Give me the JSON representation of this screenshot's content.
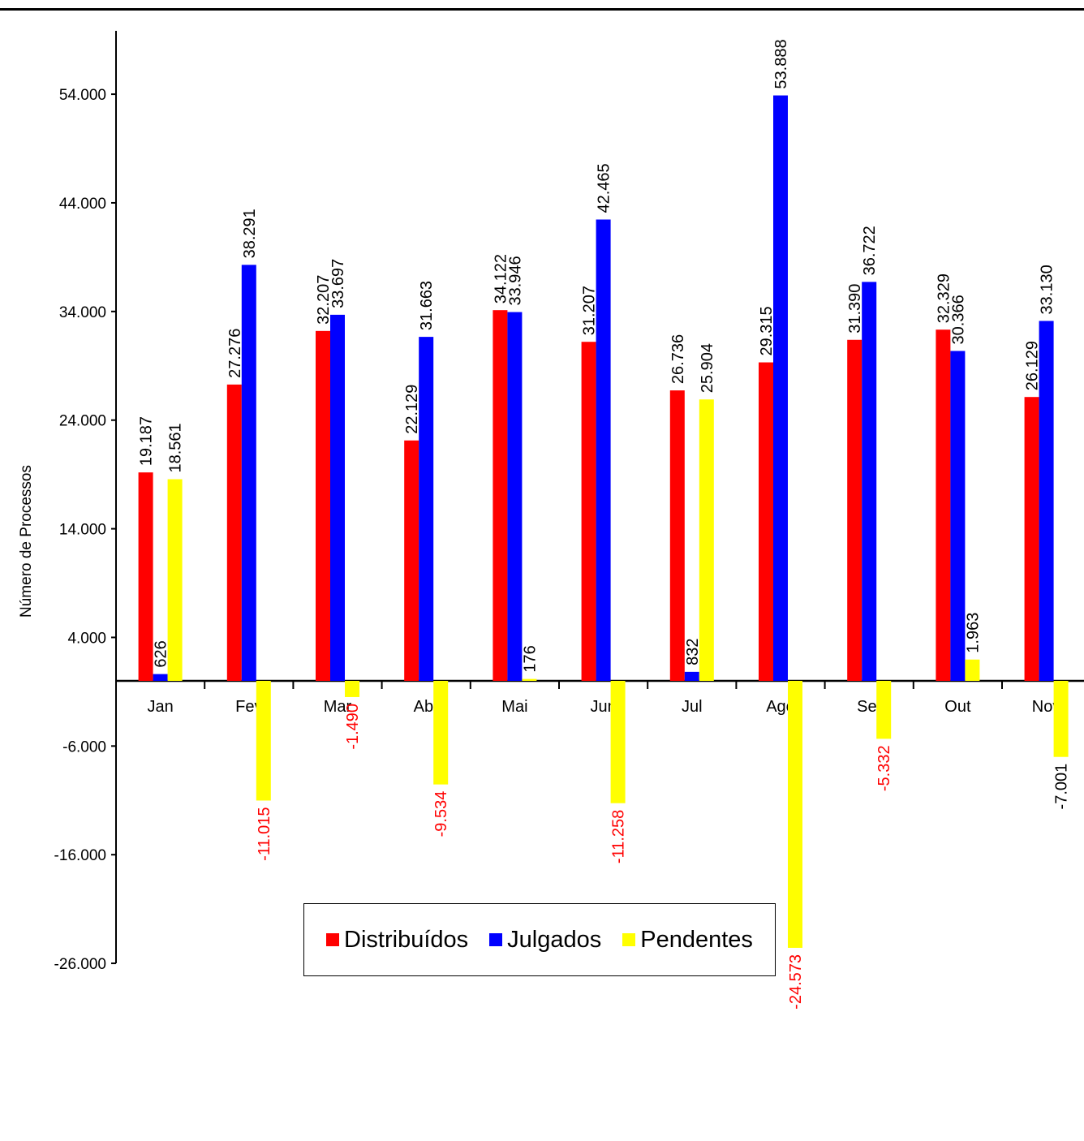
{
  "chart_data": {
    "type": "bar",
    "title": "",
    "xlabel": "",
    "ylabel": "Número de Processos",
    "ylim": [
      -26000,
      60000
    ],
    "yticks": [
      54000,
      44000,
      34000,
      24000,
      14000,
      4000,
      -6000,
      -16000,
      -26000
    ],
    "ytick_labels": [
      "54.000",
      "44.000",
      "34.000",
      "24.000",
      "14.000",
      "4.000",
      "-6.000",
      "-16.000",
      "-26.000"
    ],
    "categories": [
      "Jan",
      "Fev",
      "Mar",
      "Abr",
      "Mai",
      "Jun",
      "Jul",
      "Ago",
      "Set",
      "Out",
      "Nov"
    ],
    "series": [
      {
        "name": "Distribuídos",
        "color": "#ff0000",
        "values": [
          19187,
          27276,
          32207,
          22129,
          34122,
          31207,
          26736,
          29315,
          31390,
          32329,
          26129
        ],
        "labels": [
          "19.187",
          "27.276",
          "32.207",
          "22.129",
          "34.122",
          "31.207",
          "26.736",
          "29.315",
          "31.390",
          "32.329",
          "26.129"
        ]
      },
      {
        "name": "Julgados",
        "color": "#0000ff",
        "values": [
          626,
          38291,
          33697,
          31663,
          33946,
          42465,
          832,
          53888,
          36722,
          30366,
          33130
        ],
        "labels": [
          "626",
          "38.291",
          "33.697",
          "31.663",
          "33.946",
          "42.465",
          "832",
          "53.888",
          "36.722",
          "30.366",
          "33.130"
        ]
      },
      {
        "name": "Pendentes",
        "color": "#ffff00",
        "values": [
          18561,
          -11015,
          -1490,
          -9534,
          176,
          -11258,
          25904,
          -24573,
          -5332,
          1963,
          -7001
        ],
        "labels": [
          "18.561",
          "-11.015",
          "-1.490",
          "-9.534",
          "176",
          "-11.258",
          "25.904",
          "-24.573",
          "-5.332",
          "1.963",
          "-7.001"
        ],
        "label_colors": [
          "#000000",
          "#ff0000",
          "#ff0000",
          "#ff0000",
          "#000000",
          "#ff0000",
          "#000000",
          "#ff0000",
          "#ff0000",
          "#000000",
          "#000000"
        ]
      }
    ],
    "grid": false,
    "legend": "bottom"
  }
}
